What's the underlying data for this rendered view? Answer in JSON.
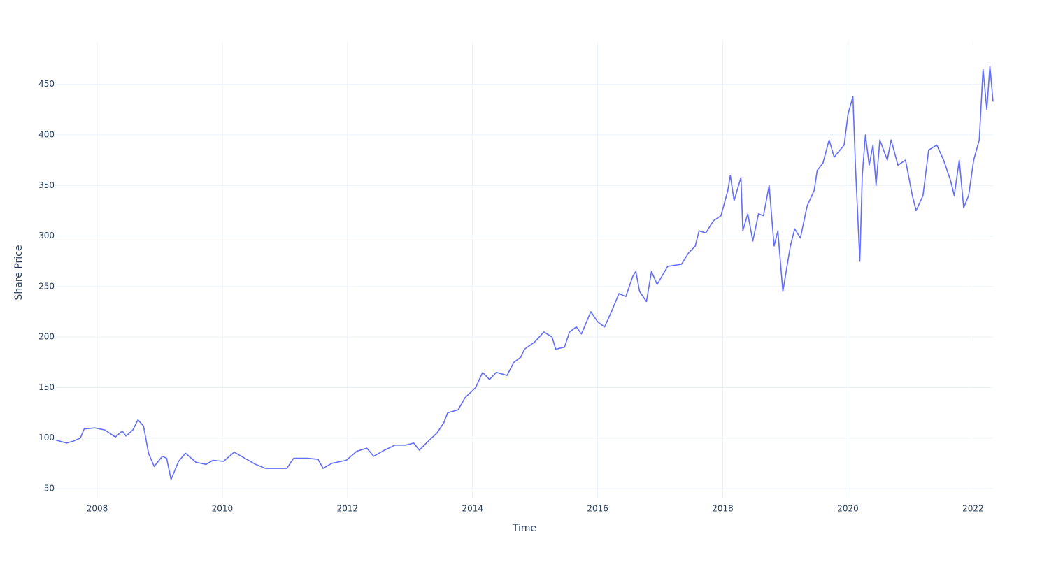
{
  "chart_data": {
    "type": "line",
    "x_label": "Time",
    "y_label": "Share Price",
    "color": "#636efa",
    "grid": true,
    "xlim": [
      2007.34,
      2022.32
    ],
    "ylim": [
      41,
      492
    ],
    "xticks": [
      2008,
      2010,
      2012,
      2014,
      2016,
      2018,
      2020,
      2022
    ],
    "yticks": [
      50,
      100,
      150,
      200,
      250,
      300,
      350,
      400,
      450
    ],
    "x": [
      2007.34,
      2007.51,
      2007.62,
      2007.73,
      2007.79,
      2007.96,
      2008.12,
      2008.29,
      2008.4,
      2008.46,
      2008.57,
      2008.65,
      2008.74,
      2008.82,
      2008.91,
      2009.04,
      2009.11,
      2009.18,
      2009.3,
      2009.41,
      2009.58,
      2009.74,
      2009.85,
      2010.02,
      2010.19,
      2010.36,
      2010.53,
      2010.69,
      2010.86,
      2011.03,
      2011.14,
      2011.36,
      2011.53,
      2011.61,
      2011.75,
      2011.98,
      2012.15,
      2012.31,
      2012.42,
      2012.59,
      2012.76,
      2012.93,
      2013.06,
      2013.15,
      2013.26,
      2013.43,
      2013.54,
      2013.6,
      2013.77,
      2013.88,
      2014.05,
      2014.16,
      2014.27,
      2014.38,
      2014.55,
      2014.66,
      2014.77,
      2014.83,
      2014.99,
      2015.14,
      2015.27,
      2015.33,
      2015.47,
      2015.55,
      2015.66,
      2015.74,
      2015.89,
      2016.0,
      2016.11,
      2016.22,
      2016.34,
      2016.45,
      2016.56,
      2016.61,
      2016.67,
      2016.78,
      2016.86,
      2016.95,
      2017.12,
      2017.34,
      2017.45,
      2017.56,
      2017.62,
      2017.73,
      2017.85,
      2017.97,
      2018.08,
      2018.12,
      2018.18,
      2018.29,
      2018.32,
      2018.4,
      2018.48,
      2018.57,
      2018.65,
      2018.74,
      2018.82,
      2018.88,
      2018.96,
      2019.08,
      2019.15,
      2019.24,
      2019.35,
      2019.46,
      2019.51,
      2019.6,
      2019.7,
      2019.78,
      2019.94,
      2020.0,
      2020.08,
      2020.12,
      2020.19,
      2020.23,
      2020.28,
      2020.34,
      2020.4,
      2020.45,
      2020.51,
      2020.63,
      2020.69,
      2020.8,
      2020.92,
      2021.03,
      2021.09,
      2021.2,
      2021.29,
      2021.42,
      2021.53,
      2021.64,
      2021.7,
      2021.78,
      2021.85,
      2021.93,
      2022.01,
      2022.1,
      2022.16,
      2022.22,
      2022.27,
      2022.32
    ],
    "values": [
      98,
      95,
      97,
      100,
      109,
      110,
      108,
      101,
      107,
      102,
      108,
      118,
      112,
      85,
      72,
      82,
      80,
      59,
      77,
      85,
      76,
      74,
      78,
      77,
      86,
      80,
      74,
      70,
      70,
      70,
      80,
      80,
      79,
      70,
      75,
      78,
      87,
      90,
      82,
      88,
      93,
      93,
      95,
      88,
      95,
      105,
      115,
      125,
      128,
      140,
      150,
      165,
      158,
      165,
      162,
      175,
      180,
      188,
      195,
      205,
      200,
      188,
      190,
      205,
      210,
      203,
      225,
      215,
      210,
      225,
      243,
      240,
      260,
      265,
      245,
      235,
      265,
      252,
      270,
      272,
      283,
      290,
      305,
      303,
      315,
      320,
      345,
      360,
      335,
      358,
      305,
      322,
      295,
      322,
      320,
      350,
      290,
      305,
      245,
      290,
      307,
      298,
      330,
      345,
      365,
      372,
      395,
      378,
      390,
      420,
      438,
      370,
      275,
      360,
      400,
      370,
      390,
      350,
      395,
      375,
      395,
      370,
      375,
      340,
      325,
      340,
      385,
      390,
      375,
      355,
      340,
      375,
      328,
      340,
      375,
      395,
      465,
      425,
      468,
      433
    ]
  }
}
